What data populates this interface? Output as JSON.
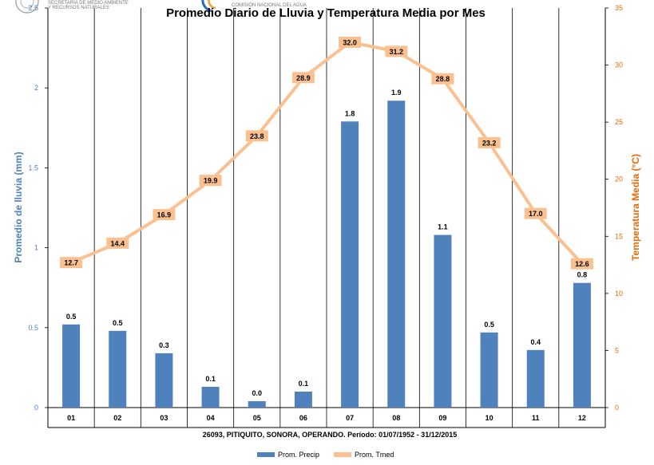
{
  "header": {
    "agency_line1": "SECRETARÍA DE MEDIO AMBIENTE",
    "agency_line2": "Y RECURSOS NATURALES",
    "conagua": "COMISIÓN NACIONAL DEL AGUA"
  },
  "chart_data": {
    "type": "bar",
    "title": "Promedio Diario de Lluvia y Temperatura Media por Mes",
    "subtitle": "26093, PITIQUITO, SONORA, OPERANDO. Período: 01/07/1952 - 31/12/2015",
    "categories": [
      "01",
      "02",
      "03",
      "04",
      "05",
      "06",
      "07",
      "08",
      "09",
      "10",
      "11",
      "12"
    ],
    "y_left": {
      "label": "Promedio de lluvia (mm)",
      "range": [
        0,
        2.5
      ],
      "ticks": [
        0,
        0.5,
        1,
        1.5,
        2,
        2.5
      ],
      "tick_labels": [
        "0",
        "0.5",
        "1",
        "1.5",
        "2",
        "2.5"
      ]
    },
    "y_right": {
      "label": "Temperatura Media (°C)",
      "range": [
        0,
        35
      ],
      "ticks": [
        0,
        5,
        10,
        15,
        20,
        25,
        30,
        35
      ],
      "tick_labels": [
        "0",
        "5",
        "10",
        "15",
        "20",
        "25",
        "30",
        "35"
      ]
    },
    "series": [
      {
        "name": "Prom. Precip",
        "kind": "bar",
        "axis": "left",
        "color": "#4f81bd",
        "values": [
          0.52,
          0.48,
          0.34,
          0.13,
          0.04,
          0.1,
          1.79,
          1.92,
          1.08,
          0.47,
          0.36,
          0.78
        ],
        "labels": [
          "0.5",
          "0.5",
          "0.3",
          "0.1",
          "0.0",
          "0.1",
          "1.8",
          "1.9",
          "1.1",
          "0.5",
          "0.4",
          "0.8"
        ]
      },
      {
        "name": "Prom. Tmed",
        "kind": "line",
        "axis": "right",
        "color": "#fac090",
        "values": [
          12.7,
          14.4,
          16.9,
          19.9,
          23.8,
          28.9,
          32.0,
          31.2,
          28.8,
          23.2,
          17.0,
          12.6
        ],
        "labels": [
          "12.7",
          "14.4",
          "16.9",
          "19.9",
          "23.8",
          "28.9",
          "32.0",
          "31.2",
          "28.8",
          "23.2",
          "17.0",
          "12.6"
        ]
      }
    ],
    "colors": {
      "left_axis_text": "#4f81bd",
      "right_axis_text": "#e36c09",
      "grid": "#000000"
    },
    "grid": true,
    "legend_position": "bottom"
  }
}
